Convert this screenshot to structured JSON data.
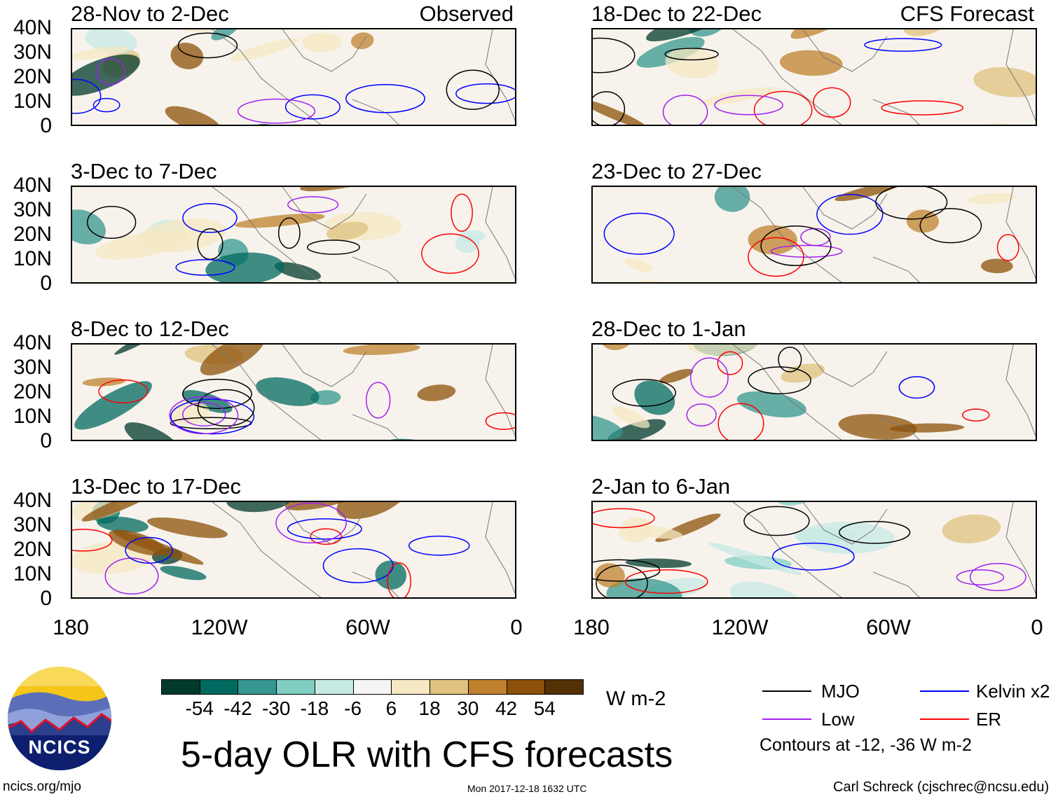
{
  "chart_data": {
    "type": "heatmap",
    "title": "5-day OLR with CFS forecasts",
    "units": "W m-2",
    "xaxis": {
      "ticks": [
        "180",
        "120W",
        "60W",
        "0"
      ],
      "range_deg_lon": [
        -180,
        0
      ]
    },
    "yaxis": {
      "ticks": [
        "40N",
        "30N",
        "20N",
        "10N",
        "0"
      ],
      "range_deg_lat": [
        0,
        40
      ]
    },
    "columns": [
      {
        "label": "Observed",
        "panels": [
          "28-Nov to 2-Dec",
          "3-Dec to 7-Dec",
          "8-Dec to 12-Dec",
          "13-Dec to 17-Dec"
        ]
      },
      {
        "label": "CFS Forecast",
        "panels": [
          "18-Dec to 22-Dec",
          "23-Dec to 27-Dec",
          "28-Dec to 1-Jan",
          "2-Jan to 6-Jan"
        ]
      }
    ],
    "colorbar": {
      "levels": [
        "-54",
        "-42",
        "-30",
        "-18",
        "-6",
        "6",
        "18",
        "30",
        "42",
        "54"
      ],
      "colors": [
        "#01392d",
        "#016a60",
        "#35978f",
        "#80cdc1",
        "#c7eae5",
        "#f5f5f5",
        "#f6e8c3",
        "#dfc27d",
        "#bf812d",
        "#8c510a",
        "#543005"
      ]
    },
    "legend": [
      {
        "label": "MJO",
        "color": "#000000"
      },
      {
        "label": "Kelvin x2",
        "color": "#0000ff"
      },
      {
        "label": "Low",
        "color": "#a020f0"
      },
      {
        "label": "ER",
        "color": "#ff0000"
      }
    ],
    "contour_note": "Contours at -12, -36 W m-2"
  },
  "footer": {
    "logo_text": "NCICS",
    "url": "ncics.org/mjo",
    "timestamp": "Mon 2017-12-18 1632 UTC",
    "credit": "Carl Schreck (cjschrec@ncsu.edu)"
  }
}
